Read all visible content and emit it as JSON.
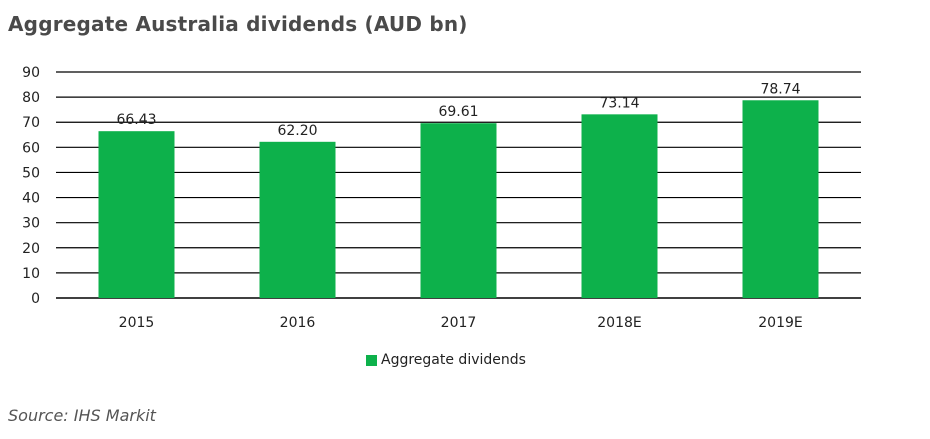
{
  "title": "Aggregate Australia dividends (AUD bn)",
  "source": "Source: IHS Markit",
  "colors": {
    "bar": "#0db14b",
    "grid": "#000000"
  },
  "chart_data": {
    "type": "bar",
    "title": "Aggregate Australia dividends (AUD bn)",
    "categories": [
      "2015",
      "2016",
      "2017",
      "2018E",
      "2019E"
    ],
    "series": [
      {
        "name": "Aggregate dividends",
        "values": [
          66.43,
          62.2,
          69.61,
          73.14,
          78.74
        ]
      }
    ],
    "value_labels": [
      "66.43",
      "62.20",
      "69.61",
      "73.14",
      "78.74"
    ],
    "ylim": [
      0,
      90
    ],
    "yticks": [
      0,
      10,
      20,
      30,
      40,
      50,
      60,
      70,
      80,
      90
    ],
    "grid": true,
    "legend": "bottom-center"
  }
}
